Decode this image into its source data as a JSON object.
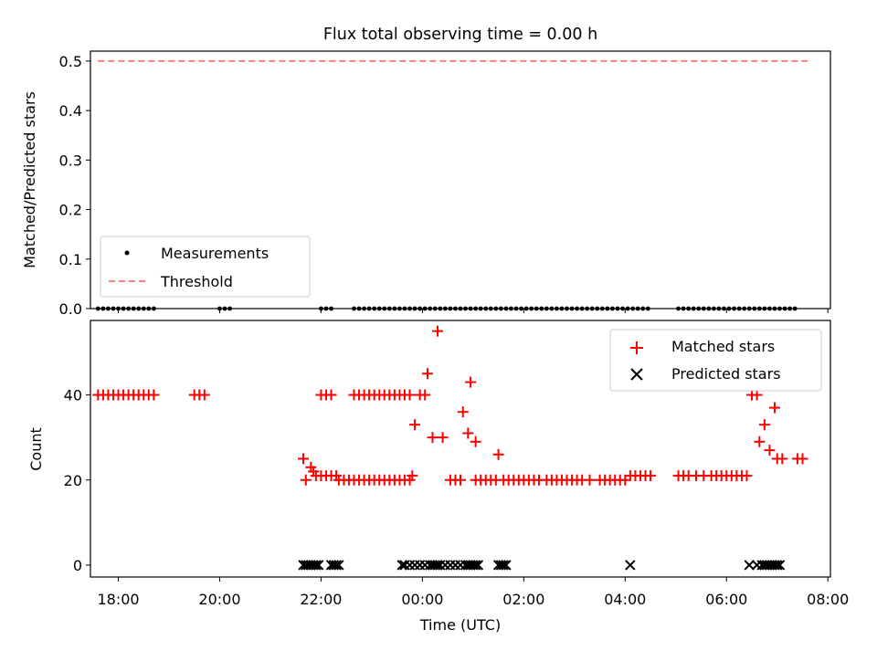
{
  "figure": {
    "title": "Flux total observing time = 0.00 h"
  },
  "colors": {
    "threshold": "#ff7f7f",
    "measurement": "#000000",
    "matched": "#ff0000",
    "predicted": "#000000"
  },
  "chart_data": [
    {
      "id": "top",
      "type": "scatter",
      "title": "Flux total observing time = 0.00 h",
      "xlabel": "",
      "ylabel": "Matched/Predicted stars",
      "x_unit": "hours since 00:00 UTC",
      "xlim": [
        -6.55,
        8.05
      ],
      "ylim": [
        0,
        0.52
      ],
      "yticks": [
        0.0,
        0.1,
        0.2,
        0.3,
        0.4,
        0.5
      ],
      "ytick_labels": [
        "0.0",
        "0.1",
        "0.2",
        "0.3",
        "0.4",
        "0.5"
      ],
      "legend_position": "lower-left",
      "threshold": {
        "name": "Threshold",
        "y": 0.5,
        "x_range": [
          -6.4,
          7.6
        ],
        "style": "dashed"
      },
      "series": [
        {
          "name": "Measurements",
          "marker": "dot",
          "y": 0.0,
          "x": [
            -6.4,
            -6.3,
            -6.2,
            -6.1,
            -6.0,
            -5.9,
            -5.8,
            -5.7,
            -5.6,
            -5.5,
            -5.4,
            -5.3,
            -4.0,
            -3.9,
            -3.8,
            -2.0,
            -1.9,
            -1.8,
            -1.35,
            -1.25,
            -1.15,
            -1.05,
            -0.95,
            -0.85,
            -0.75,
            -0.65,
            -0.55,
            -0.45,
            -0.35,
            -0.25,
            -0.15,
            -0.05,
            0.05,
            0.15,
            0.25,
            0.35,
            0.45,
            0.55,
            0.65,
            0.75,
            0.85,
            0.95,
            1.05,
            1.15,
            1.25,
            1.35,
            1.45,
            1.55,
            1.65,
            1.75,
            1.85,
            1.95,
            2.05,
            2.15,
            2.25,
            2.35,
            2.45,
            2.55,
            2.65,
            2.75,
            2.85,
            2.95,
            3.05,
            3.15,
            3.25,
            3.35,
            3.45,
            3.55,
            3.65,
            3.75,
            3.85,
            3.95,
            4.05,
            4.15,
            4.25,
            4.35,
            4.45,
            5.05,
            5.15,
            5.25,
            5.35,
            5.45,
            5.55,
            5.65,
            5.75,
            5.85,
            5.95,
            6.05,
            6.15,
            6.25,
            6.35,
            6.45,
            6.55,
            6.65,
            6.75,
            6.85,
            6.95,
            7.05,
            7.15,
            7.25,
            7.35
          ]
        }
      ]
    },
    {
      "id": "bottom",
      "type": "scatter",
      "title": "",
      "xlabel": "Time (UTC)",
      "ylabel": "Count",
      "x_unit": "hours since 00:00 UTC",
      "xlim": [
        -6.55,
        8.05
      ],
      "ylim": [
        -2.8,
        57.5
      ],
      "yticks": [
        0,
        20,
        40
      ],
      "ytick_labels": [
        "0",
        "20",
        "40"
      ],
      "xticks": [
        -6,
        -4,
        -2,
        0,
        2,
        4,
        6,
        8
      ],
      "xtick_labels": [
        "18:00",
        "20:00",
        "22:00",
        "00:00",
        "02:00",
        "04:00",
        "06:00",
        "08:00"
      ],
      "legend_position": "upper-right",
      "series": [
        {
          "name": "Matched stars",
          "marker": "plus",
          "points": [
            [
              -6.4,
              40
            ],
            [
              -6.3,
              40
            ],
            [
              -6.2,
              40
            ],
            [
              -6.1,
              40
            ],
            [
              -6.0,
              40
            ],
            [
              -5.9,
              40
            ],
            [
              -5.8,
              40
            ],
            [
              -5.7,
              40
            ],
            [
              -5.6,
              40
            ],
            [
              -5.5,
              40
            ],
            [
              -5.4,
              40
            ],
            [
              -5.3,
              40
            ],
            [
              -4.5,
              40
            ],
            [
              -4.4,
              40
            ],
            [
              -4.3,
              40
            ],
            [
              -2.0,
              40
            ],
            [
              -1.9,
              40
            ],
            [
              -1.8,
              40
            ],
            [
              -1.35,
              40
            ],
            [
              -1.25,
              40
            ],
            [
              -1.15,
              40
            ],
            [
              -1.05,
              40
            ],
            [
              -0.95,
              40
            ],
            [
              -0.85,
              40
            ],
            [
              -0.75,
              40
            ],
            [
              -0.65,
              40
            ],
            [
              -0.55,
              40
            ],
            [
              -0.45,
              40
            ],
            [
              -0.35,
              40
            ],
            [
              -0.25,
              40
            ],
            [
              -2.35,
              25
            ],
            [
              -2.3,
              20
            ],
            [
              -2.2,
              23
            ],
            [
              -2.15,
              22
            ],
            [
              -2.1,
              21
            ],
            [
              -2.0,
              21
            ],
            [
              -1.9,
              21
            ],
            [
              -1.8,
              21
            ],
            [
              -1.7,
              21
            ],
            [
              -1.65,
              20
            ],
            [
              -1.55,
              20
            ],
            [
              -1.45,
              20
            ],
            [
              -1.35,
              20
            ],
            [
              -1.25,
              20
            ],
            [
              -1.15,
              20
            ],
            [
              -1.05,
              20
            ],
            [
              -0.95,
              20
            ],
            [
              -0.85,
              20
            ],
            [
              -0.75,
              20
            ],
            [
              -0.65,
              20
            ],
            [
              -0.55,
              20
            ],
            [
              -0.45,
              20
            ],
            [
              -0.35,
              20
            ],
            [
              -0.25,
              20
            ],
            [
              -0.2,
              21
            ],
            [
              -0.15,
              33
            ],
            [
              -0.05,
              40
            ],
            [
              0.05,
              40
            ],
            [
              0.1,
              45
            ],
            [
              0.2,
              30
            ],
            [
              0.3,
              55
            ],
            [
              0.4,
              30
            ],
            [
              0.55,
              20
            ],
            [
              0.65,
              20
            ],
            [
              0.75,
              20
            ],
            [
              0.8,
              36
            ],
            [
              0.9,
              31
            ],
            [
              0.95,
              43
            ],
            [
              1.05,
              29
            ],
            [
              1.05,
              20
            ],
            [
              1.15,
              20
            ],
            [
              1.25,
              20
            ],
            [
              1.35,
              20
            ],
            [
              1.45,
              20
            ],
            [
              1.5,
              26
            ],
            [
              1.6,
              20
            ],
            [
              1.7,
              20
            ],
            [
              1.8,
              20
            ],
            [
              1.9,
              20
            ],
            [
              2.0,
              20
            ],
            [
              2.1,
              20
            ],
            [
              2.2,
              20
            ],
            [
              2.3,
              20
            ],
            [
              2.45,
              20
            ],
            [
              2.55,
              20
            ],
            [
              2.65,
              20
            ],
            [
              2.75,
              20
            ],
            [
              2.85,
              20
            ],
            [
              2.95,
              20
            ],
            [
              3.05,
              20
            ],
            [
              3.15,
              20
            ],
            [
              3.3,
              20
            ],
            [
              3.5,
              20
            ],
            [
              3.6,
              20
            ],
            [
              3.7,
              20
            ],
            [
              3.8,
              20
            ],
            [
              3.9,
              20
            ],
            [
              4.0,
              20
            ],
            [
              4.1,
              21
            ],
            [
              4.2,
              21
            ],
            [
              4.3,
              21
            ],
            [
              4.4,
              21
            ],
            [
              4.5,
              21
            ],
            [
              5.05,
              21
            ],
            [
              5.15,
              21
            ],
            [
              5.25,
              21
            ],
            [
              5.4,
              21
            ],
            [
              5.55,
              21
            ],
            [
              5.7,
              21
            ],
            [
              5.8,
              21
            ],
            [
              5.9,
              21
            ],
            [
              6.0,
              21
            ],
            [
              6.1,
              21
            ],
            [
              6.2,
              21
            ],
            [
              6.3,
              21
            ],
            [
              6.4,
              21
            ],
            [
              6.5,
              40
            ],
            [
              6.6,
              40
            ],
            [
              6.65,
              29
            ],
            [
              6.75,
              33
            ],
            [
              6.85,
              27
            ],
            [
              6.95,
              37
            ],
            [
              7.0,
              25
            ],
            [
              7.1,
              25
            ],
            [
              7.4,
              25
            ],
            [
              7.5,
              25
            ]
          ]
        },
        {
          "name": "Predicted stars",
          "marker": "x",
          "y": 0,
          "x": [
            -2.35,
            -2.3,
            -2.25,
            -2.2,
            -2.15,
            -2.1,
            -2.05,
            -1.8,
            -1.75,
            -1.7,
            -1.65,
            -0.4,
            -0.35,
            -0.25,
            -0.15,
            -0.05,
            0.05,
            0.15,
            0.2,
            0.25,
            0.3,
            0.35,
            0.45,
            0.55,
            0.65,
            0.75,
            0.85,
            0.9,
            0.95,
            1.0,
            1.05,
            1.1,
            1.5,
            1.55,
            1.6,
            1.65,
            4.1,
            6.45,
            6.6,
            6.7,
            6.75,
            6.8,
            6.85,
            6.9,
            6.95,
            7.0,
            7.05
          ]
        }
      ]
    }
  ]
}
